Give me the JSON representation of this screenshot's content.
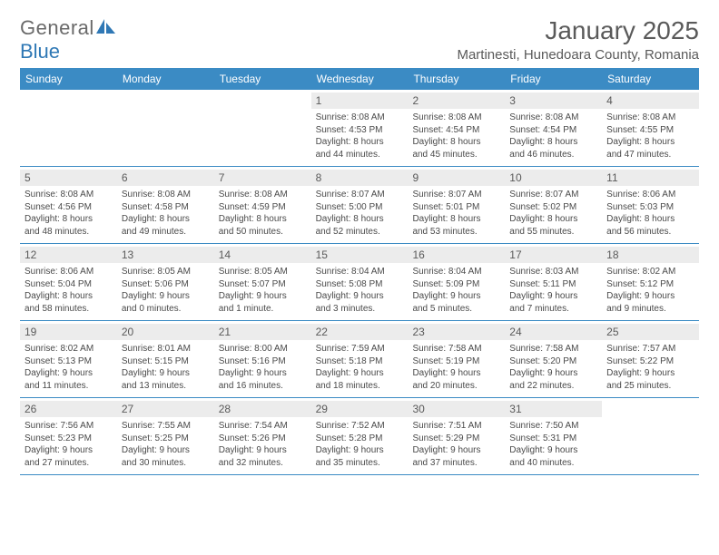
{
  "brand": {
    "name1": "General",
    "name2": "Blue"
  },
  "title": "January 2025",
  "location": "Martinesti, Hunedoara County, Romania",
  "colors": {
    "header_bg": "#3b8bc4",
    "header_text": "#ffffff",
    "daynum_bg": "#ececec",
    "text": "#4a4a4a",
    "title_text": "#5a5a5a",
    "rule": "#3b8bc4",
    "logo_accent": "#2f78b5"
  },
  "fonts": {
    "base": "Arial",
    "title_size": 28,
    "loc_size": 15,
    "dayhead_size": 12,
    "cell_size": 10
  },
  "day_headers": [
    "Sunday",
    "Monday",
    "Tuesday",
    "Wednesday",
    "Thursday",
    "Friday",
    "Saturday"
  ],
  "weeks": [
    [
      {
        "n": ""
      },
      {
        "n": ""
      },
      {
        "n": ""
      },
      {
        "n": "1",
        "sr": "Sunrise: 8:08 AM",
        "ss": "Sunset: 4:53 PM",
        "d1": "Daylight: 8 hours",
        "d2": "and 44 minutes."
      },
      {
        "n": "2",
        "sr": "Sunrise: 8:08 AM",
        "ss": "Sunset: 4:54 PM",
        "d1": "Daylight: 8 hours",
        "d2": "and 45 minutes."
      },
      {
        "n": "3",
        "sr": "Sunrise: 8:08 AM",
        "ss": "Sunset: 4:54 PM",
        "d1": "Daylight: 8 hours",
        "d2": "and 46 minutes."
      },
      {
        "n": "4",
        "sr": "Sunrise: 8:08 AM",
        "ss": "Sunset: 4:55 PM",
        "d1": "Daylight: 8 hours",
        "d2": "and 47 minutes."
      }
    ],
    [
      {
        "n": "5",
        "sr": "Sunrise: 8:08 AM",
        "ss": "Sunset: 4:56 PM",
        "d1": "Daylight: 8 hours",
        "d2": "and 48 minutes."
      },
      {
        "n": "6",
        "sr": "Sunrise: 8:08 AM",
        "ss": "Sunset: 4:58 PM",
        "d1": "Daylight: 8 hours",
        "d2": "and 49 minutes."
      },
      {
        "n": "7",
        "sr": "Sunrise: 8:08 AM",
        "ss": "Sunset: 4:59 PM",
        "d1": "Daylight: 8 hours",
        "d2": "and 50 minutes."
      },
      {
        "n": "8",
        "sr": "Sunrise: 8:07 AM",
        "ss": "Sunset: 5:00 PM",
        "d1": "Daylight: 8 hours",
        "d2": "and 52 minutes."
      },
      {
        "n": "9",
        "sr": "Sunrise: 8:07 AM",
        "ss": "Sunset: 5:01 PM",
        "d1": "Daylight: 8 hours",
        "d2": "and 53 minutes."
      },
      {
        "n": "10",
        "sr": "Sunrise: 8:07 AM",
        "ss": "Sunset: 5:02 PM",
        "d1": "Daylight: 8 hours",
        "d2": "and 55 minutes."
      },
      {
        "n": "11",
        "sr": "Sunrise: 8:06 AM",
        "ss": "Sunset: 5:03 PM",
        "d1": "Daylight: 8 hours",
        "d2": "and 56 minutes."
      }
    ],
    [
      {
        "n": "12",
        "sr": "Sunrise: 8:06 AM",
        "ss": "Sunset: 5:04 PM",
        "d1": "Daylight: 8 hours",
        "d2": "and 58 minutes."
      },
      {
        "n": "13",
        "sr": "Sunrise: 8:05 AM",
        "ss": "Sunset: 5:06 PM",
        "d1": "Daylight: 9 hours",
        "d2": "and 0 minutes."
      },
      {
        "n": "14",
        "sr": "Sunrise: 8:05 AM",
        "ss": "Sunset: 5:07 PM",
        "d1": "Daylight: 9 hours",
        "d2": "and 1 minute."
      },
      {
        "n": "15",
        "sr": "Sunrise: 8:04 AM",
        "ss": "Sunset: 5:08 PM",
        "d1": "Daylight: 9 hours",
        "d2": "and 3 minutes."
      },
      {
        "n": "16",
        "sr": "Sunrise: 8:04 AM",
        "ss": "Sunset: 5:09 PM",
        "d1": "Daylight: 9 hours",
        "d2": "and 5 minutes."
      },
      {
        "n": "17",
        "sr": "Sunrise: 8:03 AM",
        "ss": "Sunset: 5:11 PM",
        "d1": "Daylight: 9 hours",
        "d2": "and 7 minutes."
      },
      {
        "n": "18",
        "sr": "Sunrise: 8:02 AM",
        "ss": "Sunset: 5:12 PM",
        "d1": "Daylight: 9 hours",
        "d2": "and 9 minutes."
      }
    ],
    [
      {
        "n": "19",
        "sr": "Sunrise: 8:02 AM",
        "ss": "Sunset: 5:13 PM",
        "d1": "Daylight: 9 hours",
        "d2": "and 11 minutes."
      },
      {
        "n": "20",
        "sr": "Sunrise: 8:01 AM",
        "ss": "Sunset: 5:15 PM",
        "d1": "Daylight: 9 hours",
        "d2": "and 13 minutes."
      },
      {
        "n": "21",
        "sr": "Sunrise: 8:00 AM",
        "ss": "Sunset: 5:16 PM",
        "d1": "Daylight: 9 hours",
        "d2": "and 16 minutes."
      },
      {
        "n": "22",
        "sr": "Sunrise: 7:59 AM",
        "ss": "Sunset: 5:18 PM",
        "d1": "Daylight: 9 hours",
        "d2": "and 18 minutes."
      },
      {
        "n": "23",
        "sr": "Sunrise: 7:58 AM",
        "ss": "Sunset: 5:19 PM",
        "d1": "Daylight: 9 hours",
        "d2": "and 20 minutes."
      },
      {
        "n": "24",
        "sr": "Sunrise: 7:58 AM",
        "ss": "Sunset: 5:20 PM",
        "d1": "Daylight: 9 hours",
        "d2": "and 22 minutes."
      },
      {
        "n": "25",
        "sr": "Sunrise: 7:57 AM",
        "ss": "Sunset: 5:22 PM",
        "d1": "Daylight: 9 hours",
        "d2": "and 25 minutes."
      }
    ],
    [
      {
        "n": "26",
        "sr": "Sunrise: 7:56 AM",
        "ss": "Sunset: 5:23 PM",
        "d1": "Daylight: 9 hours",
        "d2": "and 27 minutes."
      },
      {
        "n": "27",
        "sr": "Sunrise: 7:55 AM",
        "ss": "Sunset: 5:25 PM",
        "d1": "Daylight: 9 hours",
        "d2": "and 30 minutes."
      },
      {
        "n": "28",
        "sr": "Sunrise: 7:54 AM",
        "ss": "Sunset: 5:26 PM",
        "d1": "Daylight: 9 hours",
        "d2": "and 32 minutes."
      },
      {
        "n": "29",
        "sr": "Sunrise: 7:52 AM",
        "ss": "Sunset: 5:28 PM",
        "d1": "Daylight: 9 hours",
        "d2": "and 35 minutes."
      },
      {
        "n": "30",
        "sr": "Sunrise: 7:51 AM",
        "ss": "Sunset: 5:29 PM",
        "d1": "Daylight: 9 hours",
        "d2": "and 37 minutes."
      },
      {
        "n": "31",
        "sr": "Sunrise: 7:50 AM",
        "ss": "Sunset: 5:31 PM",
        "d1": "Daylight: 9 hours",
        "d2": "and 40 minutes."
      },
      {
        "n": ""
      }
    ]
  ]
}
